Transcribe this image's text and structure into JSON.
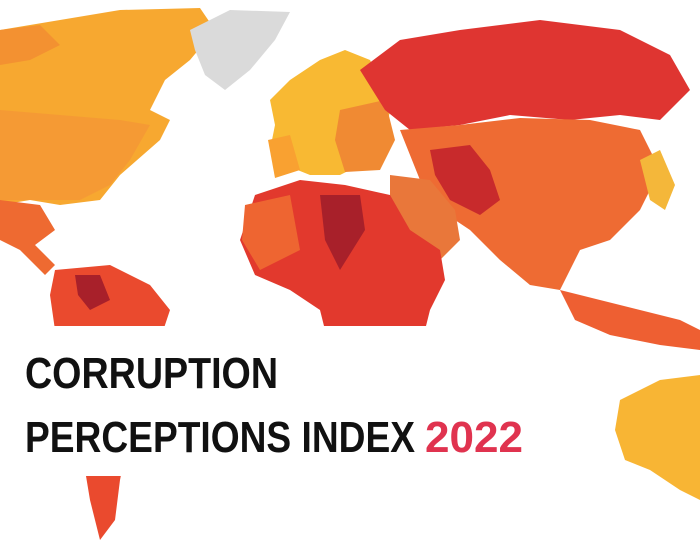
{
  "header": {
    "line1": "CORRUPTION",
    "line2": "PERCEPTIONS INDEX",
    "year": "2022"
  }
}
